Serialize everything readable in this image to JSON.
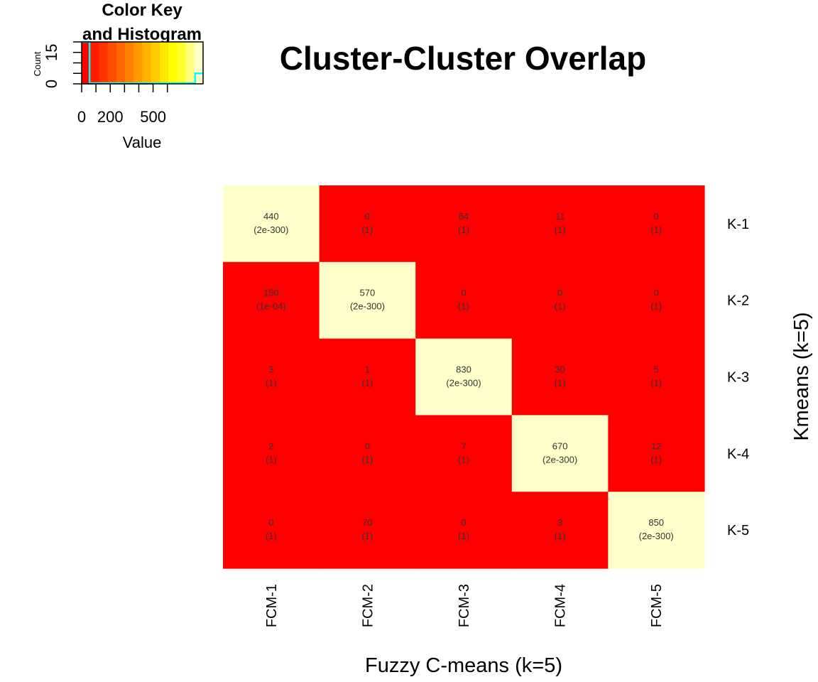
{
  "chart_data": {
    "type": "heatmap",
    "title": "Cluster-Cluster Overlap",
    "xlabel": "Fuzzy C-means (k=5)",
    "ylabel": "Kmeans (k=5)",
    "columns": [
      "FCM-1",
      "FCM-2",
      "FCM-3",
      "FCM-4",
      "FCM-5"
    ],
    "rows": [
      "K-1",
      "K-2",
      "K-3",
      "K-4",
      "K-5"
    ],
    "values": [
      [
        440,
        0,
        64,
        11,
        0
      ],
      [
        150,
        570,
        0,
        0,
        0
      ],
      [
        3,
        1,
        830,
        30,
        5
      ],
      [
        2,
        0,
        7,
        670,
        12
      ],
      [
        0,
        70,
        0,
        3,
        850
      ]
    ],
    "pvalues": [
      [
        "(2e-300)",
        "(1)",
        "(1)",
        "(1)",
        "(1)"
      ],
      [
        "(1e-04)",
        "(2e-300)",
        "(1)",
        "(1)",
        "(1)"
      ],
      [
        "(1)",
        "(1)",
        "(2e-300)",
        "(1)",
        "(1)"
      ],
      [
        "(1)",
        "(1)",
        "(1)",
        "(2e-300)",
        "(1)"
      ],
      [
        "(1)",
        "(1)",
        "(1)",
        "(1)",
        "(2e-300)"
      ]
    ],
    "cell_colors": [
      [
        "#FFFFCC",
        "#FF0000",
        "#FF0000",
        "#FF0000",
        "#FF0000"
      ],
      [
        "#FF0000",
        "#FFFFCC",
        "#FF0000",
        "#FF0000",
        "#FF0000"
      ],
      [
        "#FF0000",
        "#FF0000",
        "#FFFFCC",
        "#FF0000",
        "#FF0000"
      ],
      [
        "#FF0000",
        "#FF0000",
        "#FF0000",
        "#FFFFCC",
        "#FF0000"
      ],
      [
        "#FF0000",
        "#FF0000",
        "#FF0000",
        "#FF0000",
        "#FFFFCC"
      ]
    ],
    "color_key": {
      "title_line1": "Color Key",
      "title_line2": "and Histogram",
      "xlabel": "Value",
      "ylabel": "Count",
      "x_ticks": [
        "0",
        "200",
        "500"
      ],
      "x_tick_values": [
        0,
        200,
        500
      ],
      "y_ticks": [
        "0",
        "15"
      ],
      "y_tick_values": [
        0,
        15
      ],
      "range": [
        0,
        850
      ],
      "count_max": 20,
      "histogram_counts": [
        20,
        5
      ],
      "palette": [
        "#FF0000",
        "#FF1A00",
        "#FF3300",
        "#FF4D00",
        "#FF6600",
        "#FF8000",
        "#FF9900",
        "#FFB300",
        "#FFCC00",
        "#FFE600",
        "#FFFF00",
        "#FFFF2A",
        "#FFFF80",
        "#FFFFCC"
      ],
      "line_color": "#00FFFF"
    }
  }
}
